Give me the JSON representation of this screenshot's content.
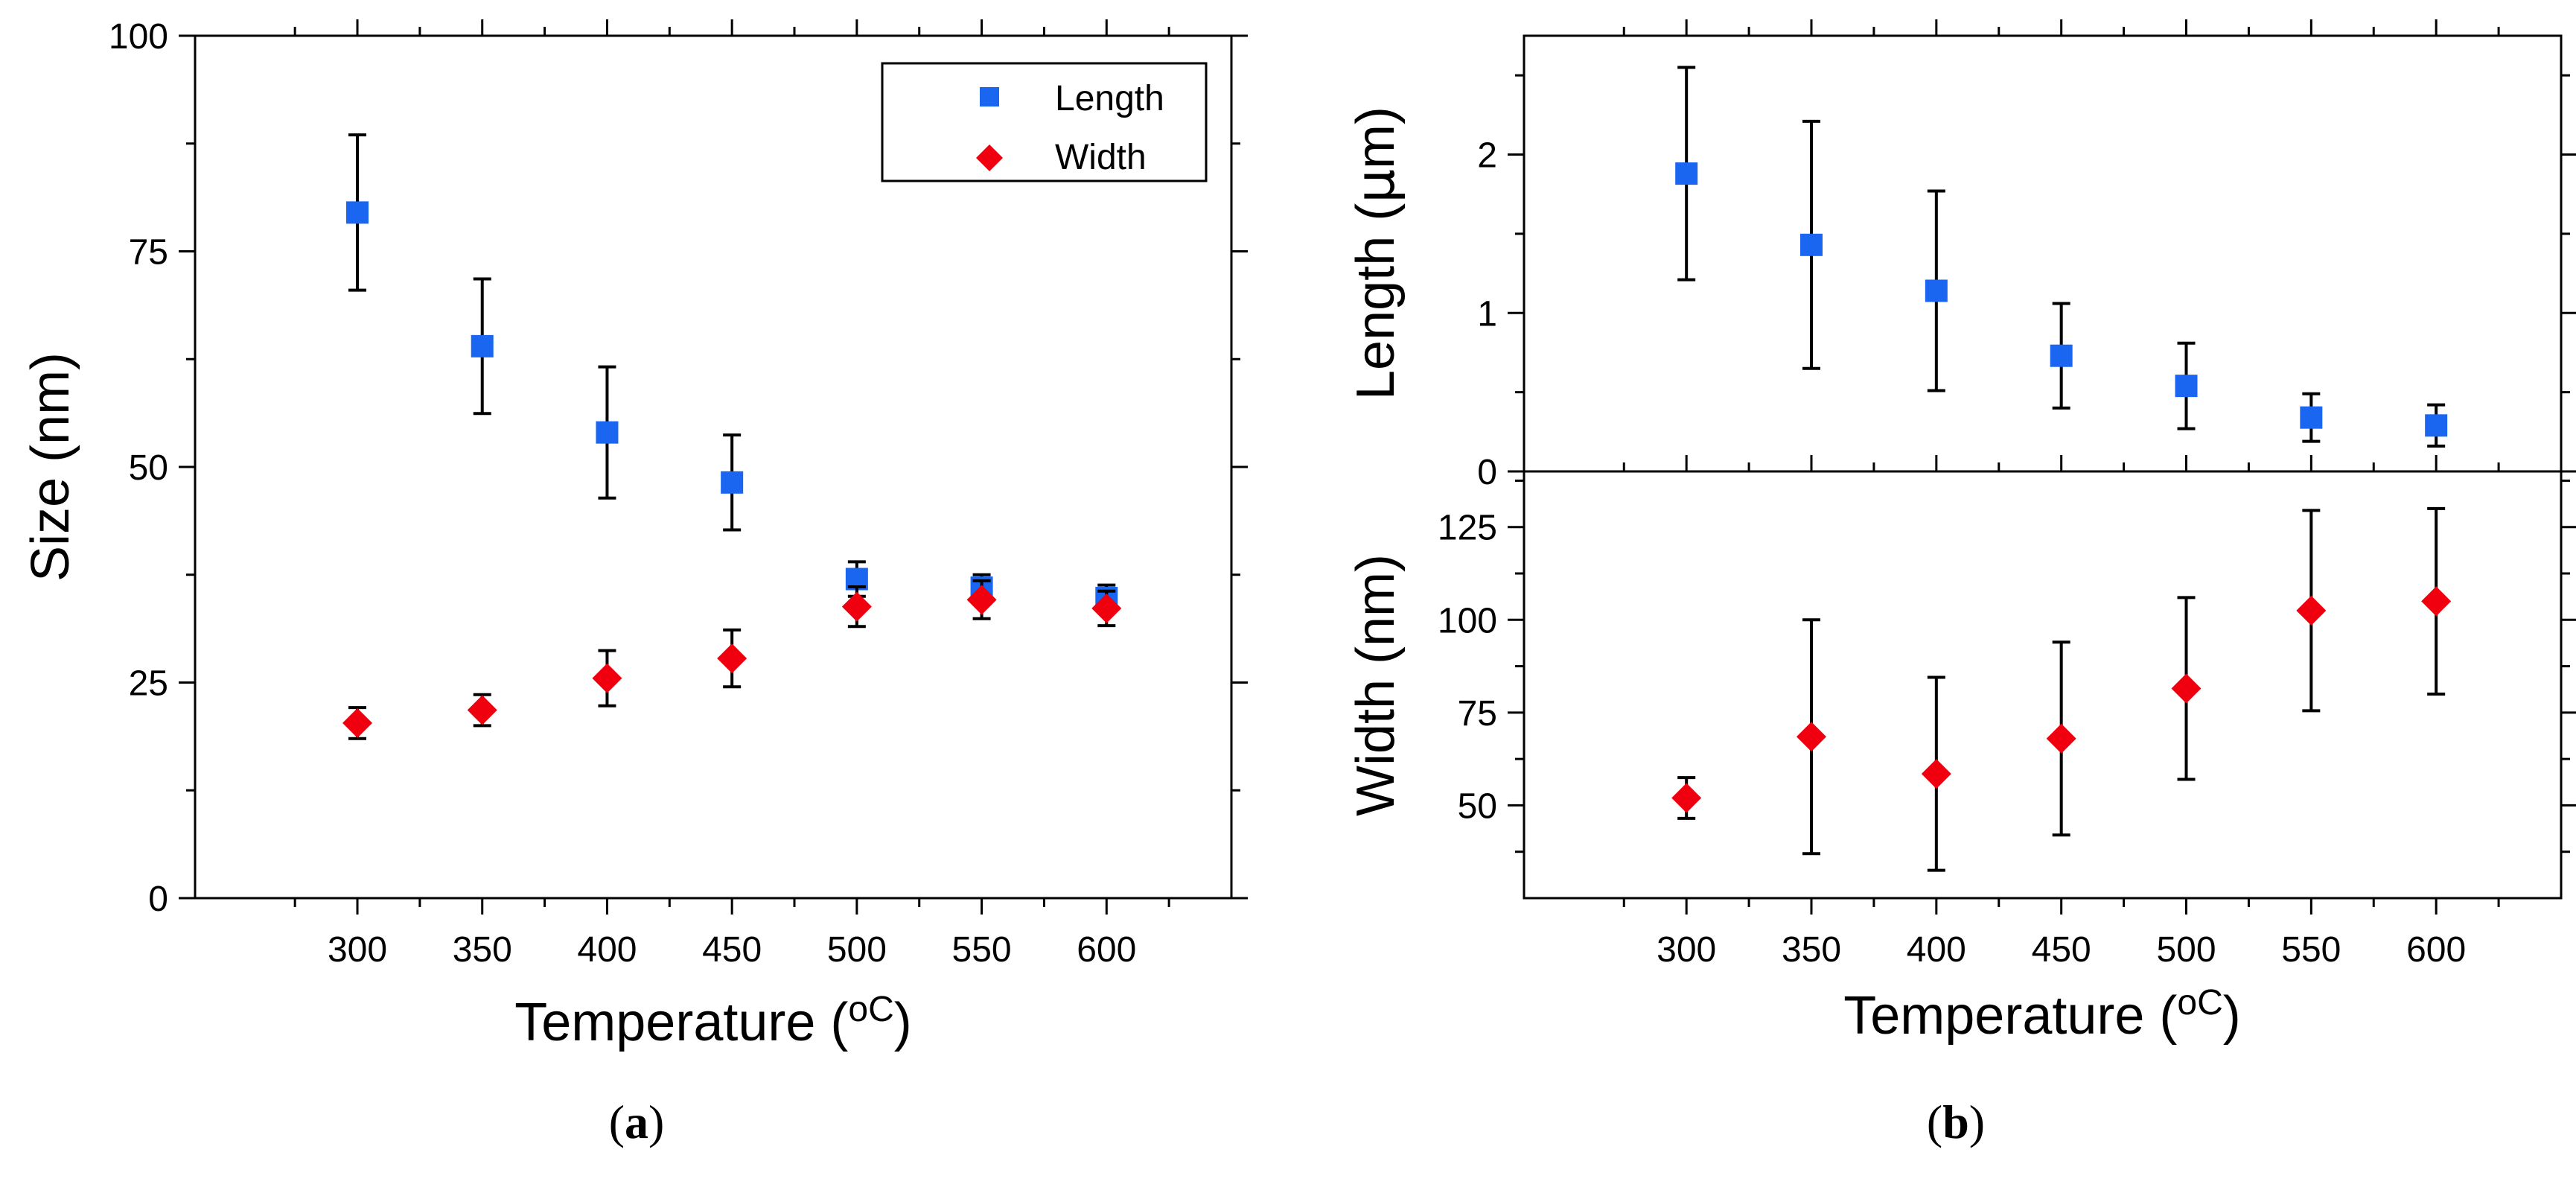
{
  "colors": {
    "length": "#1a66f0",
    "width": "#f0000f",
    "axis": "#000000"
  },
  "chart_data": [
    {
      "id": "a",
      "type": "scatter",
      "panel_label": "a",
      "xlabel": "Temperature (",
      "xlabel_sup": "oC",
      "xlabel_end": ")",
      "ylabel": "Size (nm)",
      "xlim": [
        235,
        650
      ],
      "ylim": [
        0,
        100
      ],
      "x_ticks": [
        300,
        350,
        400,
        450,
        500,
        550,
        600
      ],
      "x_tick_labels": [
        "300",
        "350",
        "400",
        "450",
        "500",
        "550",
        "600"
      ],
      "y_ticks": [
        0,
        25,
        50,
        75,
        100
      ],
      "y_tick_labels": [
        "0",
        "25",
        "50",
        "75",
        "100"
      ],
      "legend": {
        "position": "top-right",
        "entries": [
          "Length",
          "Width"
        ]
      },
      "series": [
        {
          "name": "Length",
          "marker": "square",
          "color": "#1a66f0",
          "x": [
            300,
            350,
            400,
            450,
            500,
            550,
            600
          ],
          "y": [
            79.5,
            64.0,
            54.0,
            48.2,
            37.0,
            36.0,
            34.8
          ],
          "err": [
            9.0,
            7.8,
            7.6,
            5.5,
            2.0,
            1.5,
            1.5
          ]
        },
        {
          "name": "Width",
          "marker": "diamond",
          "color": "#f0000f",
          "x": [
            300,
            350,
            400,
            450,
            500,
            550,
            600
          ],
          "y": [
            20.3,
            21.8,
            25.5,
            27.8,
            33.8,
            34.6,
            33.6
          ],
          "err": [
            1.8,
            1.8,
            3.2,
            3.3,
            2.3,
            2.2,
            2.0
          ]
        }
      ]
    },
    {
      "id": "b-top",
      "type": "scatter",
      "ylabel": "Length (",
      "ylabel_mu": "μ",
      "ylabel_end": "m)",
      "xlim": [
        235,
        650
      ],
      "ylim": [
        0,
        2.75
      ],
      "y_ticks": [
        0,
        1,
        2
      ],
      "y_tick_labels": [
        "0",
        "1",
        "2"
      ],
      "series": [
        {
          "name": "Length",
          "marker": "square",
          "color": "#1a66f0",
          "x": [
            300,
            350,
            400,
            450,
            500,
            550,
            600
          ],
          "y": [
            1.88,
            1.43,
            1.14,
            0.73,
            0.54,
            0.34,
            0.29
          ],
          "err": [
            0.67,
            0.78,
            0.63,
            0.33,
            0.27,
            0.15,
            0.13
          ]
        }
      ]
    },
    {
      "id": "b-bottom",
      "type": "scatter",
      "panel_label": "b",
      "xlabel": "Temperature (",
      "xlabel_sup": "oC",
      "xlabel_end": ")",
      "ylabel": "Width (nm)",
      "xlim": [
        235,
        650
      ],
      "ylim": [
        25,
        140
      ],
      "x_ticks": [
        300,
        350,
        400,
        450,
        500,
        550,
        600
      ],
      "x_tick_labels": [
        "300",
        "350",
        "400",
        "450",
        "500",
        "550",
        "600"
      ],
      "y_ticks": [
        50,
        75,
        100,
        125
      ],
      "y_tick_labels": [
        "50",
        "75",
        "100",
        "125"
      ],
      "series": [
        {
          "name": "Width",
          "marker": "diamond",
          "color": "#f0000f",
          "x": [
            300,
            350,
            400,
            450,
            500,
            550,
            600
          ],
          "y": [
            52,
            68.5,
            58.5,
            68,
            81.5,
            102.5,
            105
          ],
          "err": [
            5.5,
            31.5,
            26,
            26,
            24.5,
            27,
            25
          ]
        }
      ]
    }
  ]
}
